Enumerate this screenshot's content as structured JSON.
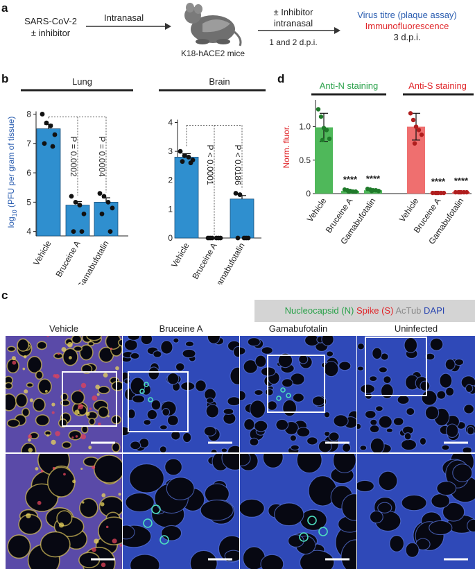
{
  "panel_labels": {
    "a": "a",
    "b": "b",
    "c": "c",
    "d": "d"
  },
  "schematic": {
    "virus_line1": "SARS-CoV-2",
    "virus_line2": "± inhibitor",
    "route": "Intranasal",
    "mouse_label": "K18-hACE2 mice",
    "inhibitor_line1": "± Inhibitor",
    "inhibitor_line2": "intranasal",
    "inhibitor_days": "1 and 2 d.p.i.",
    "readout1": "Virus titre (plaque assay)",
    "readout2": "Immunofluorescence",
    "readout_day": "3 d.p.i.",
    "colors": {
      "readout1": "#2a5db0",
      "readout2": "#e0262a"
    }
  },
  "chart_data": [
    {
      "type": "bar",
      "title": "Lung",
      "ylabel_prefix": "log",
      "ylabel_sub": "10",
      "ylabel_rest": " (PFU per gram of tissue)",
      "categories": [
        "Vehicle",
        "Bruceine A",
        "Gamabufotalin"
      ],
      "values": [
        7.5,
        4.9,
        5.0
      ],
      "errors": [
        0.15,
        0.12,
        0.15
      ],
      "points": [
        [
          8.0,
          7.7,
          7.6,
          7.3,
          7.0,
          6.9
        ],
        [
          5.2,
          5.0,
          4.9,
          4.6,
          4.0,
          4.0
        ],
        [
          5.3,
          5.2,
          5.0,
          4.8,
          4.6,
          4.0
        ]
      ],
      "ylim": [
        3.85,
        8.2
      ],
      "yticks": [
        4,
        5,
        6,
        7,
        8
      ],
      "pvalues": [
        "P = 0.0002",
        "P = 0.0004"
      ],
      "bar_color": "#2f8fcf"
    },
    {
      "type": "bar",
      "title": "Brain",
      "ylabel_prefix": "log",
      "ylabel_sub": "10",
      "ylabel_rest": " (PFU per gram of tissue)",
      "categories": [
        "Vehicle",
        "Bruceine A",
        "Gamabufotalin"
      ],
      "values": [
        2.8,
        0.0,
        1.35
      ],
      "errors": [
        0.12,
        0.0,
        0.12
      ],
      "points": [
        [
          3.0,
          2.85,
          2.8,
          2.7,
          2.65,
          2.6
        ],
        [
          0,
          0,
          0,
          0,
          0,
          0
        ],
        [
          1.55,
          1.5,
          0,
          0,
          0,
          0
        ]
      ],
      "ylim": [
        0,
        4.3
      ],
      "yticks": [
        0,
        1,
        2,
        3,
        4
      ],
      "pvalues": [
        "P < 0.0001",
        "P < 0.0186"
      ],
      "bar_color": "#2f8fcf"
    },
    {
      "type": "bar",
      "ylabel": "Norm. fluor.",
      "group_labels": [
        "Anti-N staining",
        "Anti-S staining"
      ],
      "categories": [
        "Vehicle",
        "Bruceine A",
        "Gamabufotalin",
        "Vehicle",
        "Bruceine A",
        "Gamabufotalin"
      ],
      "values": [
        0.99,
        0.04,
        0.05,
        1.0,
        0.01,
        0.02
      ],
      "errors": [
        0.21,
        0.02,
        0.02,
        0.2,
        0.01,
        0.01
      ],
      "points": [
        [
          1.26,
          1.15,
          0.98,
          0.95,
          0.82,
          0.8
        ],
        [
          0.06,
          0.05,
          0.04,
          0.03,
          0.03,
          0.03
        ],
        [
          0.07,
          0.06,
          0.05,
          0.05,
          0.04,
          0.04
        ],
        [
          1.2,
          1.1,
          1.0,
          0.95,
          0.88,
          0.75
        ],
        [
          0.01,
          0.01,
          0.01,
          0.01,
          0.01,
          0.01
        ],
        [
          0.02,
          0.02,
          0.02,
          0.02,
          0.02,
          0.02
        ]
      ],
      "ylim": [
        0,
        1.4
      ],
      "yticks": [
        "0",
        "0.5",
        "1.0"
      ],
      "significance": [
        "****",
        "****",
        "****",
        "****"
      ],
      "colors": {
        "anti_n_bar": "#4fb85a",
        "anti_n_dot": "#1f7a2a",
        "anti_s_bar": "#ef6f6f",
        "anti_s_dot": "#b01e1e",
        "anti_n_label": "#2aa14a",
        "anti_s_label": "#e0262a"
      }
    }
  ],
  "micrographs": {
    "legend": {
      "n_label": "Nucleocapsid (N)",
      "s_label": "Spike (S)",
      "actub_label": "AcTub",
      "dapi_label": "DAPI",
      "colors": {
        "n": "#2aa14a",
        "s": "#e0262a",
        "actub": "#8a8a8a",
        "dapi": "#2a46b0"
      }
    },
    "columns": [
      "Vehicle",
      "Bruceine A",
      "Gamabufotalin",
      "Uninfected"
    ]
  }
}
